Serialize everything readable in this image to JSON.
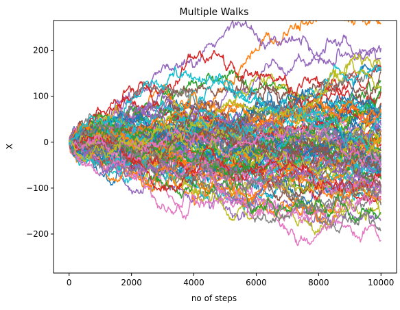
{
  "chart_data": {
    "type": "line",
    "title": "Multiple Walks",
    "xlabel": "no of steps",
    "ylabel": "X",
    "xlim": [
      -500,
      10500
    ],
    "ylim": [
      -285,
      265
    ],
    "xticks": [
      0,
      2000,
      4000,
      6000,
      8000,
      10000
    ],
    "xtick_labels": [
      "0",
      "2000",
      "4000",
      "6000",
      "8000",
      "10000"
    ],
    "yticks": [
      -200,
      -100,
      0,
      100,
      200
    ],
    "ytick_labels": [
      "−200",
      "−100",
      "0",
      "100",
      "200"
    ],
    "grid": false,
    "legend": "none",
    "n_series": 100,
    "n_steps": 10000,
    "series_start": 0,
    "final_value_range": [
      -205,
      225
    ],
    "overall_max": 240,
    "overall_min": -260,
    "palette": [
      "#1f77b4",
      "#ff7f0e",
      "#2ca02c",
      "#d62728",
      "#9467bd",
      "#8c564b",
      "#e377c2",
      "#7f7f7f",
      "#bcbd22",
      "#17becf"
    ]
  }
}
